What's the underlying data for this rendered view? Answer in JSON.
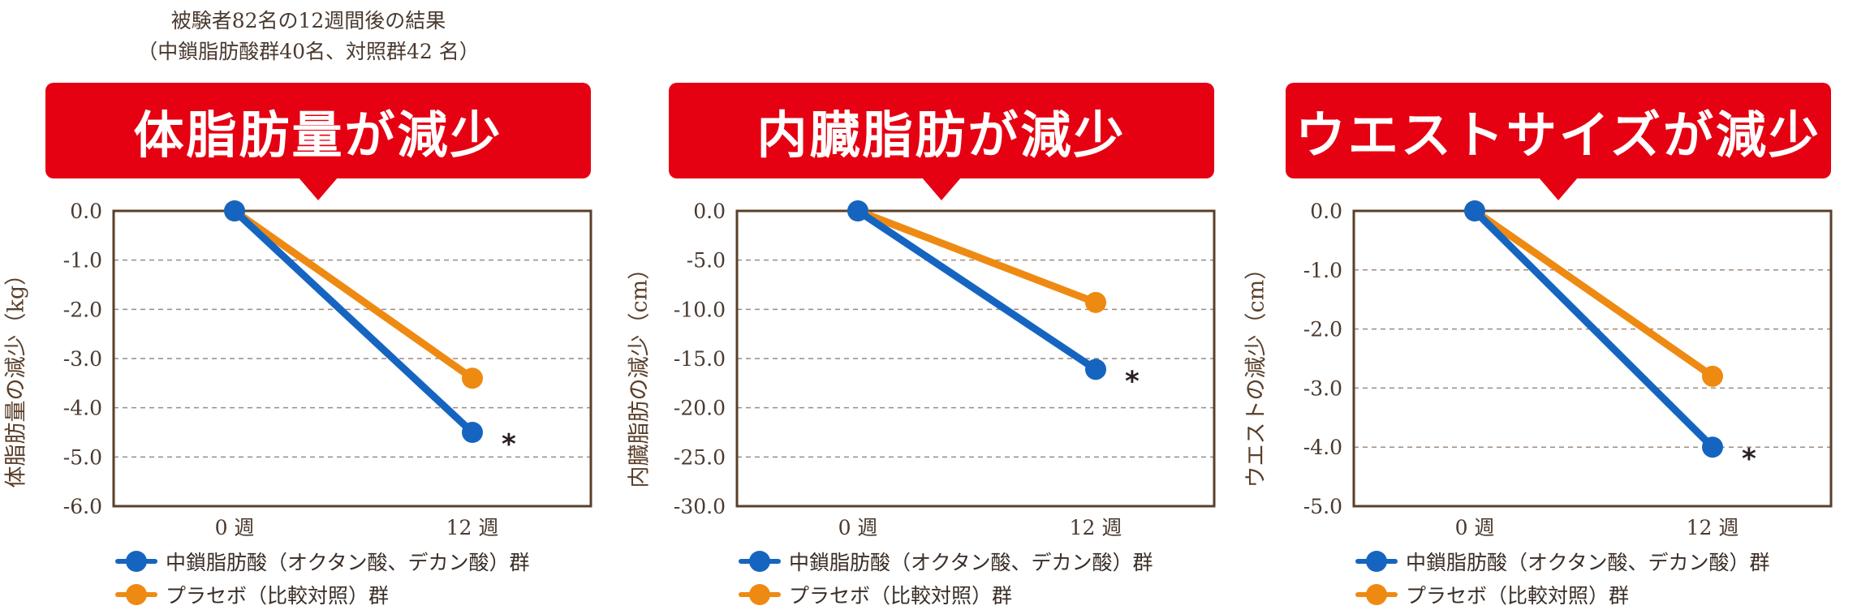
{
  "note": {
    "line1": "被験者82名の12週間後の結果",
    "line2": "（中鎖脂肪酸群40名、対照群42 名）"
  },
  "colors": {
    "banner": "#e50012",
    "series_mcfa": "#1565c0",
    "series_placebo": "#ee8a12",
    "frame": "#5a3f2a"
  },
  "legend": {
    "mcfa": "中鎖脂肪酸（オクタン酸、デカン酸）群",
    "placebo": "プラセボ（比較対照）群"
  },
  "chart_data": [
    {
      "type": "line",
      "title": "体脂肪量が減少",
      "ylabel": "体脂肪量の減少（kg）",
      "categories": [
        "0 週",
        "12 週"
      ],
      "ylim": [
        -6.0,
        0.0
      ],
      "yticks": [
        "0.0",
        "-1.0",
        "-2.0",
        "-3.0",
        "-4.0",
        "-5.0",
        "-6.0"
      ],
      "ytick_values": [
        0,
        -1,
        -2,
        -3,
        -4,
        -5,
        -6
      ],
      "grid": true,
      "annotation": "*",
      "series": [
        {
          "name": "中鎖脂肪酸（オクタン酸、デカン酸）群",
          "values": [
            0.0,
            -4.5
          ]
        },
        {
          "name": "プラセボ（比較対照）群",
          "values": [
            0.0,
            -3.4
          ]
        }
      ]
    },
    {
      "type": "line",
      "title": "内臓脂肪が減少",
      "ylabel": "内臓脂肪の減少（cm）",
      "categories": [
        "0 週",
        "12 週"
      ],
      "ylim": [
        -30.0,
        0.0
      ],
      "yticks": [
        "0.0",
        "-5.0",
        "-10.0",
        "-15.0",
        "-20.0",
        "-25.0",
        "-30.0"
      ],
      "ytick_values": [
        0,
        -5,
        -10,
        -15,
        -20,
        -25,
        -30
      ],
      "grid": true,
      "annotation": "*",
      "series": [
        {
          "name": "中鎖脂肪酸（オクタン酸、デカン酸）群",
          "values": [
            0.0,
            -16.1
          ]
        },
        {
          "name": "プラセボ（比較対照）群",
          "values": [
            0.0,
            -9.3
          ]
        }
      ]
    },
    {
      "type": "line",
      "title": "ウエストサイズが減少",
      "ylabel": "ウエストの減少（cm）",
      "categories": [
        "0 週",
        "12 週"
      ],
      "ylim": [
        -5.0,
        0.0
      ],
      "yticks": [
        "0.0",
        "-1.0",
        "-2.0",
        "-3.0",
        "-4.0",
        "-5.0"
      ],
      "ytick_values": [
        0,
        -1,
        -2,
        -3,
        -4,
        -5
      ],
      "grid": true,
      "annotation": "*",
      "series": [
        {
          "name": "中鎖脂肪酸（オクタン酸、デカン酸）群",
          "values": [
            0.0,
            -4.0
          ]
        },
        {
          "name": "プラセボ（比較対照）群",
          "values": [
            0.0,
            -2.8
          ]
        }
      ]
    }
  ]
}
